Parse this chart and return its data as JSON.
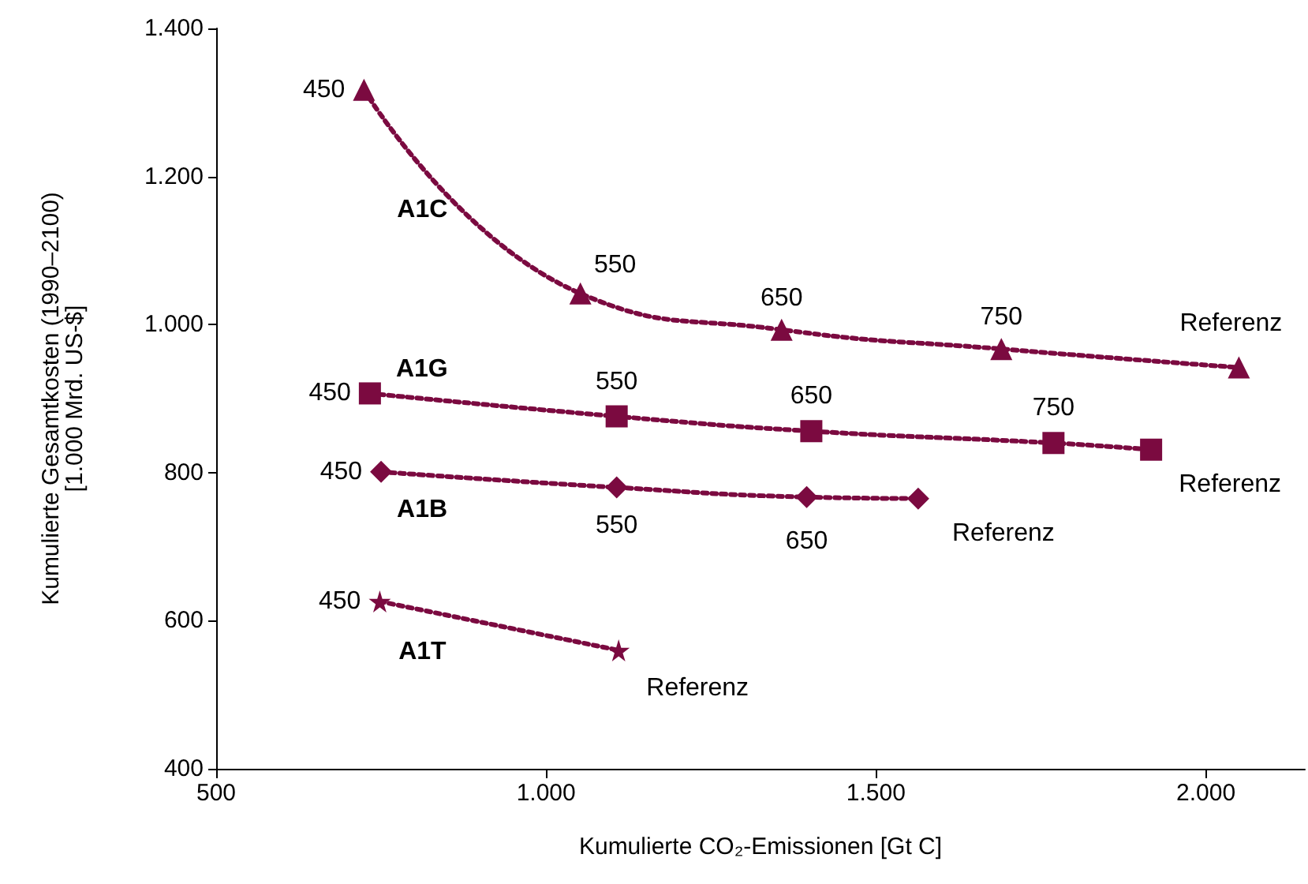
{
  "chart_data": {
    "type": "line",
    "xlabel": "Kumulierte CO₂-Emissionen [Gt C]",
    "ylabel": "Kumulierte Gesamtkosten (1990–2100)\n[1.000 Mrd. US-$]",
    "series": [
      {
        "name": "A1C",
        "color": "#7b0a40",
        "marker": "triangle",
        "x": [
          724,
          1052,
          1357,
          1690,
          2050
        ],
        "values": [
          1317,
          1042,
          993,
          967,
          942
        ]
      },
      {
        "name": "A1G",
        "color": "#7b0a40",
        "marker": "square",
        "x": [
          733,
          1107,
          1402,
          1769,
          1917
        ],
        "values": [
          907,
          876,
          856,
          840,
          831
        ]
      },
      {
        "name": "A1B",
        "color": "#7b0a40",
        "marker": "diamond",
        "x": [
          750,
          1107,
          1395,
          1564
        ],
        "values": [
          801,
          780,
          767,
          765
        ]
      },
      {
        "name": "A1T",
        "color": "#7b0a40",
        "marker": "star",
        "x": [
          748,
          1110
        ],
        "values": [
          626,
          560
        ]
      }
    ],
    "annotations": [
      {
        "text": "450",
        "x": 724,
        "y": 1317
      },
      {
        "text": "550",
        "x": 1052,
        "y": 1042
      },
      {
        "text": "650",
        "x": 1357,
        "y": 993
      },
      {
        "text": "750",
        "x": 1690,
        "y": 967
      },
      {
        "text": "Referenz",
        "x": 2050,
        "y": 942
      },
      {
        "text": "450",
        "x": 733,
        "y": 907
      },
      {
        "text": "550",
        "x": 1107,
        "y": 876
      },
      {
        "text": "650",
        "x": 1402,
        "y": 856
      },
      {
        "text": "750",
        "x": 1769,
        "y": 840
      },
      {
        "text": "Referenz",
        "x": 1917,
        "y": 831
      },
      {
        "text": "450",
        "x": 750,
        "y": 801
      },
      {
        "text": "550",
        "x": 1107,
        "y": 780
      },
      {
        "text": "650",
        "x": 1395,
        "y": 767
      },
      {
        "text": "Referenz",
        "x": 1564,
        "y": 765
      },
      {
        "text": "450",
        "x": 748,
        "y": 626
      },
      {
        "text": "Referenz",
        "x": 1110,
        "y": 560
      }
    ],
    "xlim": [
      500,
      2150
    ],
    "xticks": [
      500,
      {
        "value": 1000,
        "label": "1.000"
      },
      {
        "value": 1500,
        "label": "1.500"
      },
      {
        "value": 2000,
        "label": "2.000"
      }
    ],
    "ylim": [
      400,
      1400
    ],
    "yticks": [
      400,
      600,
      800,
      {
        "value": 1000,
        "label": "1.000"
      },
      {
        "value": 1200,
        "label": "1.200"
      },
      {
        "value": 1400,
        "label": "1.400"
      }
    ],
    "grid": false,
    "legend": false,
    "line_style": "dotted"
  }
}
